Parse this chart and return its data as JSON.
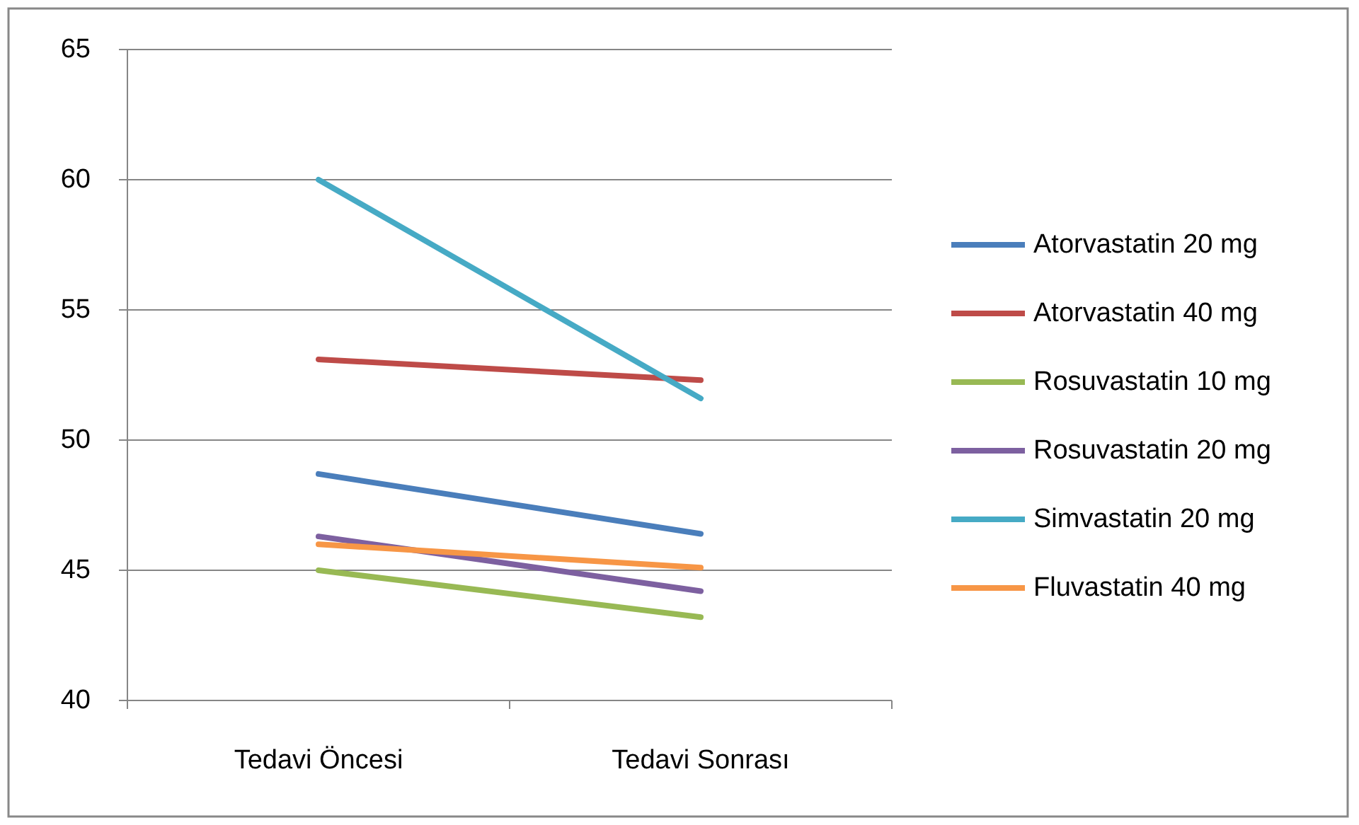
{
  "chart_data": {
    "type": "line",
    "categories": [
      "Tedavi Öncesi",
      "Tedavi Sonrası"
    ],
    "series": [
      {
        "name": "Atorvastatin 20 mg",
        "color": "#4a7ebb",
        "values": [
          48.7,
          46.4
        ]
      },
      {
        "name": "Atorvastatin 40 mg",
        "color": "#be4b48",
        "values": [
          53.1,
          52.3
        ]
      },
      {
        "name": "Rosuvastatin 10 mg",
        "color": "#98b954",
        "values": [
          45.0,
          43.2
        ]
      },
      {
        "name": "Rosuvastatin 20 mg",
        "color": "#7d60a0",
        "values": [
          46.3,
          44.2
        ]
      },
      {
        "name": "Simvastatin 20 mg",
        "color": "#46aac5",
        "values": [
          60.0,
          51.6
        ]
      },
      {
        "name": "Fluvastatin 40 mg",
        "color": "#f79646",
        "values": [
          46.0,
          45.1
        ]
      }
    ],
    "ylim": [
      40,
      65
    ],
    "yticks": [
      40,
      45,
      50,
      55,
      60,
      65
    ],
    "grid": "y",
    "legend": "right",
    "marker": "none",
    "line_style": "solid"
  }
}
